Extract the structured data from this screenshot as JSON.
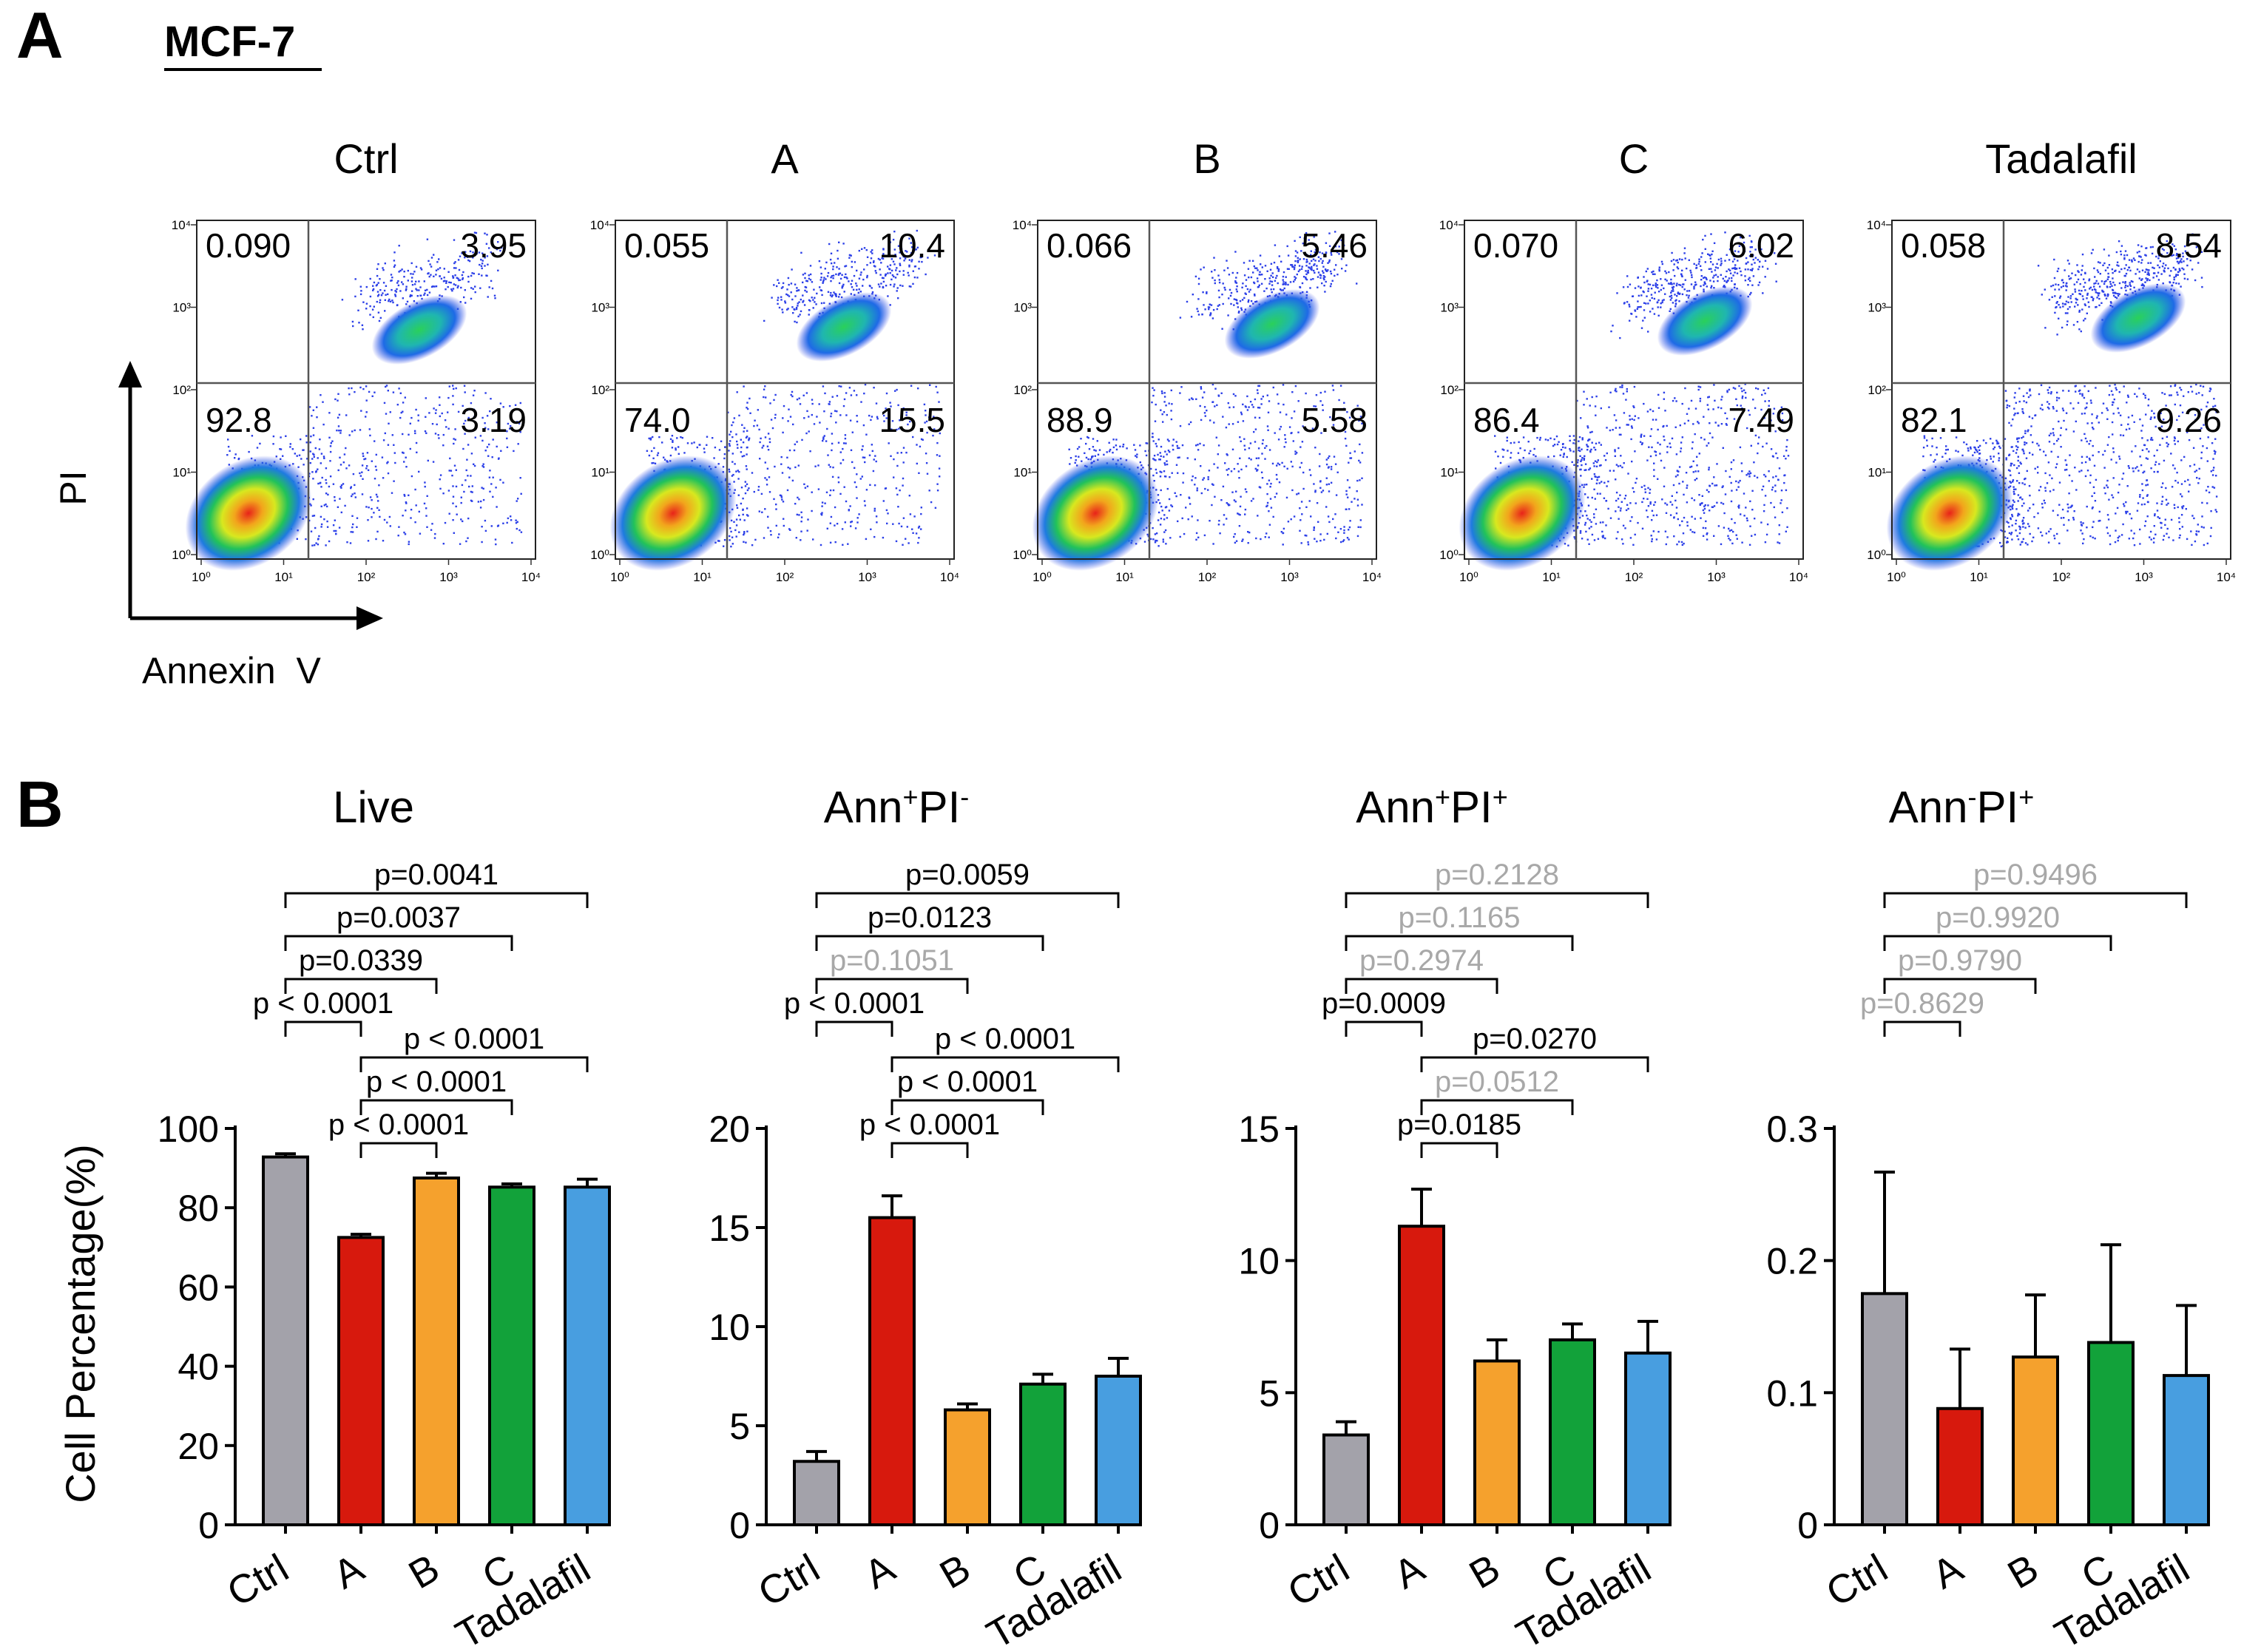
{
  "figure": {
    "panel_a_letter": "A",
    "panel_b_letter": "B",
    "cell_line": "MCF-7",
    "flow_y_axis_label": "PI",
    "flow_x_axis_label": "Annexin  V",
    "bar_y_axis_label": "Cell Percentage(%)"
  },
  "colors": {
    "Ctrl": "#a3a2aa",
    "A": "#d7190d",
    "B": "#f5a12d",
    "C": "#12a23a",
    "Tadalafil": "#489ee0",
    "sig_text": "#000000",
    "nonsig_text": "#a8a8a8"
  },
  "chart_data": [
    {
      "type": "scatter",
      "panel": "A",
      "subtype": "flow-cytometry quadrant plots",
      "axis_scale": "log",
      "x_ticks": [
        "10⁰",
        "10¹",
        "10²",
        "10³",
        "10⁴"
      ],
      "y_ticks": [
        "10⁰",
        "10¹",
        "10²",
        "10³",
        "10⁴"
      ],
      "plots": [
        {
          "title": "Ctrl",
          "q_upper_left": "0.090",
          "q_upper_right": "3.95",
          "q_lower_left": "92.8",
          "q_lower_right": "3.19"
        },
        {
          "title": "A",
          "q_upper_left": "0.055",
          "q_upper_right": "10.4",
          "q_lower_left": "74.0",
          "q_lower_right": "15.5"
        },
        {
          "title": "B",
          "q_upper_left": "0.066",
          "q_upper_right": "5.46",
          "q_lower_left": "88.9",
          "q_lower_right": "5.58"
        },
        {
          "title": "C",
          "q_upper_left": "0.070",
          "q_upper_right": "6.02",
          "q_lower_left": "86.4",
          "q_lower_right": "7.49"
        },
        {
          "title": "Tadalafil",
          "q_upper_left": "0.058",
          "q_upper_right": "8.54",
          "q_lower_left": "82.1",
          "q_lower_right": "9.26"
        }
      ]
    },
    {
      "type": "bar",
      "panel": "B",
      "title": "Live",
      "title_main": "Live",
      "title_sup1": "",
      "title_mid": "",
      "title_sup2": "",
      "categories": [
        "Ctrl",
        "A",
        "B",
        "C",
        "Tadalafil"
      ],
      "values": [
        92.8,
        72.5,
        87.5,
        85.2,
        85.2
      ],
      "errors": [
        0.8,
        0.8,
        1.2,
        0.8,
        2.0
      ],
      "ylim": [
        0,
        100
      ],
      "yticks": [
        0,
        20,
        40,
        60,
        80,
        100
      ],
      "ytick_labels": [
        "0",
        "20",
        "40",
        "60",
        "80",
        "100"
      ],
      "comparisons": [
        {
          "from": 0,
          "to": 4,
          "label": "p=0.0041",
          "significant": true
        },
        {
          "from": 0,
          "to": 3,
          "label": "p=0.0037",
          "significant": true
        },
        {
          "from": 0,
          "to": 2,
          "label": "p=0.0339",
          "significant": true
        },
        {
          "from": 0,
          "to": 1,
          "label": "p < 0.0001",
          "significant": true
        },
        {
          "from": 1,
          "to": 4,
          "label": "p < 0.0001",
          "significant": true
        },
        {
          "from": 1,
          "to": 3,
          "label": "p < 0.0001",
          "significant": true
        },
        {
          "from": 1,
          "to": 2,
          "label": "p < 0.0001",
          "significant": true
        }
      ]
    },
    {
      "type": "bar",
      "panel": "B",
      "title": "Ann+PI-",
      "title_main": "Ann",
      "title_sup1": "+",
      "title_mid": "PI",
      "title_sup2": "-",
      "categories": [
        "Ctrl",
        "A",
        "B",
        "C",
        "Tadalafil"
      ],
      "values": [
        3.2,
        15.5,
        5.8,
        7.1,
        7.5
      ],
      "errors": [
        0.5,
        1.1,
        0.3,
        0.5,
        0.9
      ],
      "ylim": [
        0,
        20
      ],
      "yticks": [
        0,
        5,
        10,
        15,
        20
      ],
      "ytick_labels": [
        "0",
        "5",
        "10",
        "15",
        "20"
      ],
      "comparisons": [
        {
          "from": 0,
          "to": 4,
          "label": "p=0.0059",
          "significant": true
        },
        {
          "from": 0,
          "to": 3,
          "label": "p=0.0123",
          "significant": true
        },
        {
          "from": 0,
          "to": 2,
          "label": "p=0.1051",
          "significant": false
        },
        {
          "from": 0,
          "to": 1,
          "label": "p < 0.0001",
          "significant": true
        },
        {
          "from": 1,
          "to": 4,
          "label": "p < 0.0001",
          "significant": true
        },
        {
          "from": 1,
          "to": 3,
          "label": "p < 0.0001",
          "significant": true
        },
        {
          "from": 1,
          "to": 2,
          "label": "p < 0.0001",
          "significant": true
        }
      ]
    },
    {
      "type": "bar",
      "panel": "B",
      "title": "Ann+PI+",
      "title_main": "Ann",
      "title_sup1": "+",
      "title_mid": "PI",
      "title_sup2": "+",
      "categories": [
        "Ctrl",
        "A",
        "B",
        "C",
        "Tadalafil"
      ],
      "values": [
        3.4,
        11.3,
        6.2,
        7.0,
        6.5
      ],
      "errors": [
        0.5,
        1.4,
        0.8,
        0.6,
        1.2
      ],
      "ylim": [
        0,
        15
      ],
      "yticks": [
        0,
        5,
        10,
        15
      ],
      "ytick_labels": [
        "0",
        "5",
        "10",
        "15"
      ],
      "comparisons": [
        {
          "from": 0,
          "to": 4,
          "label": "p=0.2128",
          "significant": false
        },
        {
          "from": 0,
          "to": 3,
          "label": "p=0.1165",
          "significant": false
        },
        {
          "from": 0,
          "to": 2,
          "label": "p=0.2974",
          "significant": false
        },
        {
          "from": 0,
          "to": 1,
          "label": "p=0.0009",
          "significant": true
        },
        {
          "from": 1,
          "to": 4,
          "label": "p=0.0270",
          "significant": true
        },
        {
          "from": 1,
          "to": 3,
          "label": "p=0.0512",
          "significant": false
        },
        {
          "from": 1,
          "to": 2,
          "label": "p=0.0185",
          "significant": true
        }
      ]
    },
    {
      "type": "bar",
      "panel": "B",
      "title": "Ann-PI+",
      "title_main": "Ann",
      "title_sup1": "-",
      "title_mid": "PI",
      "title_sup2": "+",
      "categories": [
        "Ctrl",
        "A",
        "B",
        "C",
        "Tadalafil"
      ],
      "values": [
        0.175,
        0.088,
        0.127,
        0.138,
        0.113
      ],
      "errors": [
        0.092,
        0.045,
        0.047,
        0.074,
        0.053
      ],
      "ylim": [
        0,
        0.3
      ],
      "yticks": [
        0,
        0.1,
        0.2,
        0.3
      ],
      "ytick_labels": [
        "0",
        "0.1",
        "0.2",
        "0.3"
      ],
      "comparisons": [
        {
          "from": 0,
          "to": 4,
          "label": "p=0.9496",
          "significant": false
        },
        {
          "from": 0,
          "to": 3,
          "label": "p=0.9920",
          "significant": false
        },
        {
          "from": 0,
          "to": 2,
          "label": "p=0.9790",
          "significant": false
        },
        {
          "from": 0,
          "to": 1,
          "label": "p=0.8629",
          "significant": false
        }
      ]
    }
  ]
}
